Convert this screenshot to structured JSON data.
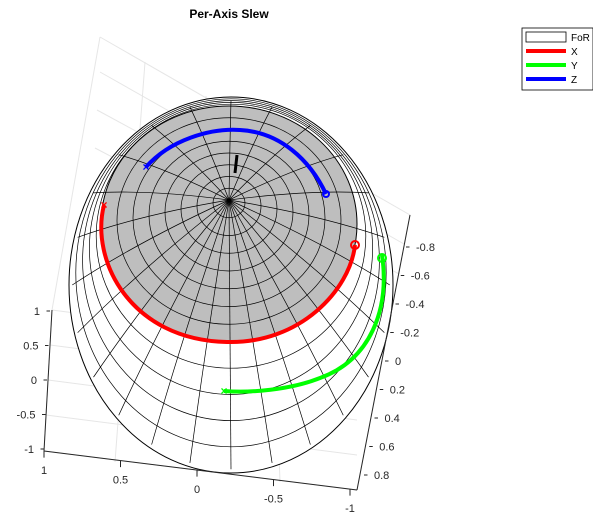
{
  "chart_data": {
    "type": "line",
    "title": "Per-Axis Slew",
    "legend": {
      "placement": "top-right",
      "entries": [
        {
          "label": "FoR",
          "color": "#ffffff",
          "swatch": "patch"
        },
        {
          "label": "X",
          "color": "#ff0000",
          "swatch": "line"
        },
        {
          "label": "Y",
          "color": "#00ff00",
          "swatch": "line"
        },
        {
          "label": "Z",
          "color": "#0000ff",
          "swatch": "line"
        }
      ]
    },
    "colors": {
      "sphere_face": "#ffffff",
      "cap_face": "#bebebe",
      "edge": "#000000"
    },
    "axes": {
      "x": {
        "range": [
          -1,
          1
        ],
        "ticks": [
          "1",
          "0.5",
          "0",
          "-0.5",
          "-1"
        ]
      },
      "y": {
        "range": [
          -1,
          1
        ],
        "ticks": [
          "-0.8",
          "-0.6",
          "-0.4",
          "-0.2",
          "0",
          "0.2",
          "0.4",
          "0.6",
          "0.8"
        ]
      },
      "z": {
        "range": [
          -1,
          1
        ],
        "ticks": [
          "1",
          "0.5",
          "0",
          "-0.5",
          "-1"
        ]
      },
      "grid": true
    },
    "series": [
      {
        "name": "X",
        "color": "#ff0000",
        "start_marker": "o",
        "end_marker": "x"
      },
      {
        "name": "Y",
        "color": "#00ff00",
        "start_marker": "o",
        "end_marker": "x"
      },
      {
        "name": "Z",
        "color": "#0000ff",
        "start_marker": "o",
        "end_marker": "x"
      }
    ]
  }
}
